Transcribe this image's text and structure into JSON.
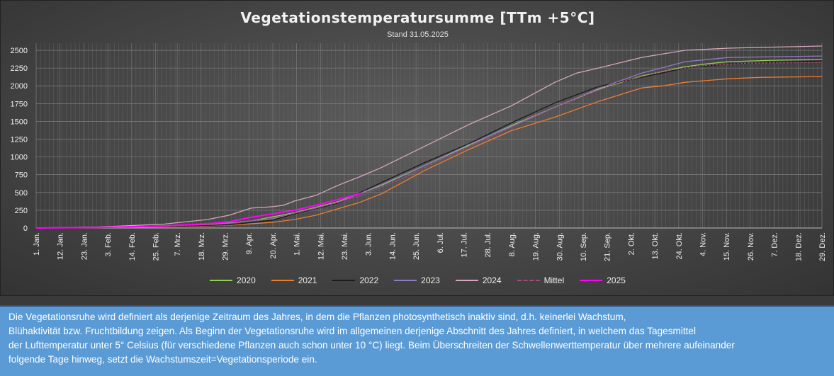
{
  "header": {
    "title": "Vegetationstemperatursumme [TTm +5°C]",
    "subtitle": "Stand 31.05.2025"
  },
  "description": {
    "lines": [
      "Die Vegetationsruhe wird definiert als derjenige Zeitraum des Jahres, in dem die Pflanzen photosynthetisch inaktiv sind, d.h. keinerlei Wachstum,",
      "Blühaktivität bzw. Fruchtbildung zeigen. Als Beginn der Vegetationsruhe wird im allgemeinen derjenige Abschnitt des Jahres definiert, in welchem das Tagesmittel",
      "der Lufttemperatur unter 5° Celsius (für verschiedene Pflanzen auch schon unter 10 °C) liegt. Beim Überschreiten der Schwellenwerttemperatur über mehrere aufeinander",
      "folgende Tage hinweg, setzt die Wachstumszeit=Vegetationsperiode ein."
    ]
  },
  "chart_data": {
    "type": "line",
    "title": "Vegetationstemperatursumme [TTm +5°C]",
    "subtitle": "Stand 31.05.2025",
    "xlabel": "",
    "ylabel": "",
    "ylim": [
      0,
      2600
    ],
    "yticks": [
      0,
      250,
      500,
      750,
      1000,
      1250,
      1500,
      1750,
      2000,
      2250,
      2500
    ],
    "xlim": [
      1,
      363
    ],
    "xticks": [
      {
        "day": 1,
        "label": "1. Jan."
      },
      {
        "day": 12,
        "label": "12. Jan."
      },
      {
        "day": 23,
        "label": "23. Jan."
      },
      {
        "day": 34,
        "label": "3. Feb."
      },
      {
        "day": 45,
        "label": "14. Feb."
      },
      {
        "day": 56,
        "label": "25. Feb."
      },
      {
        "day": 66,
        "label": "7. Mrz."
      },
      {
        "day": 77,
        "label": "18. Mrz."
      },
      {
        "day": 88,
        "label": "29. Mrz."
      },
      {
        "day": 99,
        "label": "9. Apr."
      },
      {
        "day": 110,
        "label": "20. Apr."
      },
      {
        "day": 121,
        "label": "1. Mai."
      },
      {
        "day": 132,
        "label": "12. Mai."
      },
      {
        "day": 143,
        "label": "23. Mai."
      },
      {
        "day": 154,
        "label": "3. Jun."
      },
      {
        "day": 165,
        "label": "14. Jun."
      },
      {
        "day": 176,
        "label": "25. Jun."
      },
      {
        "day": 187,
        "label": "6. Jul."
      },
      {
        "day": 198,
        "label": "17. Jul."
      },
      {
        "day": 209,
        "label": "28. Jul."
      },
      {
        "day": 220,
        "label": "8. Aug."
      },
      {
        "day": 231,
        "label": "19. Aug."
      },
      {
        "day": 242,
        "label": "30. Aug."
      },
      {
        "day": 253,
        "label": "10. Sep."
      },
      {
        "day": 264,
        "label": "21. Sep."
      },
      {
        "day": 275,
        "label": "2. Okt."
      },
      {
        "day": 286,
        "label": "13. Okt."
      },
      {
        "day": 297,
        "label": "24. Okt."
      },
      {
        "day": 308,
        "label": "4. Nov."
      },
      {
        "day": 319,
        "label": "15. Nov."
      },
      {
        "day": 330,
        "label": "26. Nov."
      },
      {
        "day": 341,
        "label": "7. Dez."
      },
      {
        "day": 352,
        "label": "18. Dez."
      },
      {
        "day": 363,
        "label": "29. Dez."
      }
    ],
    "grid": true,
    "legend": "bottom",
    "series": [
      {
        "name": "2020",
        "color": "#92d050",
        "dashed": false,
        "x": [
          1,
          30,
          60,
          80,
          100,
          120,
          140,
          160,
          180,
          200,
          220,
          240,
          260,
          280,
          300,
          310,
          320,
          340,
          365
        ],
        "y": [
          0,
          10,
          25,
          45,
          100,
          215,
          370,
          600,
          880,
          1160,
          1440,
          1700,
          1950,
          2140,
          2270,
          2310,
          2340,
          2360,
          2370
        ]
      },
      {
        "name": "2021",
        "color": "#ed7d31",
        "dashed": false,
        "x": [
          1,
          30,
          60,
          90,
          110,
          120,
          130,
          140,
          150,
          160,
          180,
          200,
          220,
          240,
          260,
          280,
          290,
          300,
          320,
          335,
          365
        ],
        "y": [
          0,
          5,
          15,
          40,
          80,
          120,
          180,
          270,
          360,
          480,
          810,
          1100,
          1370,
          1560,
          1780,
          1970,
          2000,
          2050,
          2100,
          2120,
          2130
        ]
      },
      {
        "name": "2022",
        "color": "#1a1a1a",
        "dashed": false,
        "x": [
          1,
          30,
          60,
          90,
          110,
          120,
          140,
          160,
          180,
          200,
          220,
          240,
          260,
          280,
          300,
          320,
          365
        ],
        "y": [
          0,
          8,
          20,
          45,
          110,
          200,
          350,
          640,
          920,
          1180,
          1480,
          1760,
          1990,
          2120,
          2250,
          2310,
          2350
        ]
      },
      {
        "name": "2023",
        "color": "#8e7cc3",
        "dashed": false,
        "x": [
          1,
          30,
          60,
          90,
          110,
          120,
          140,
          160,
          180,
          200,
          220,
          240,
          260,
          280,
          300,
          320,
          365
        ],
        "y": [
          0,
          10,
          30,
          70,
          130,
          210,
          360,
          610,
          880,
          1170,
          1430,
          1700,
          1960,
          2180,
          2340,
          2400,
          2420
        ]
      },
      {
        "name": "2024",
        "color": "#d5a6bd",
        "dashed": false,
        "x": [
          1,
          30,
          60,
          80,
          90,
          100,
          110,
          115,
          120,
          130,
          140,
          150,
          160,
          180,
          200,
          220,
          240,
          250,
          260,
          280,
          300,
          320,
          365
        ],
        "y": [
          0,
          15,
          55,
          120,
          180,
          280,
          300,
          320,
          380,
          460,
          600,
          720,
          850,
          1150,
          1450,
          1720,
          2050,
          2180,
          2250,
          2400,
          2500,
          2530,
          2560
        ]
      },
      {
        "name": "Mittel",
        "color": "#a54c7d",
        "dashed": true,
        "x": [
          1,
          30,
          60,
          90,
          110,
          130,
          150,
          170,
          190,
          210,
          230,
          250,
          270,
          290,
          310,
          330,
          365
        ],
        "y": [
          0,
          10,
          25,
          60,
          140,
          280,
          450,
          700,
          1000,
          1280,
          1560,
          1830,
          2050,
          2210,
          2290,
          2320,
          2330
        ]
      },
      {
        "name": "2025",
        "color": "#ff00ff",
        "dashed": false,
        "x": [
          1,
          30,
          60,
          80,
          90,
          100,
          110,
          120,
          130,
          140,
          151
        ],
        "y": [
          0,
          8,
          30,
          60,
          90,
          150,
          200,
          250,
          320,
          400,
          490
        ]
      }
    ]
  }
}
